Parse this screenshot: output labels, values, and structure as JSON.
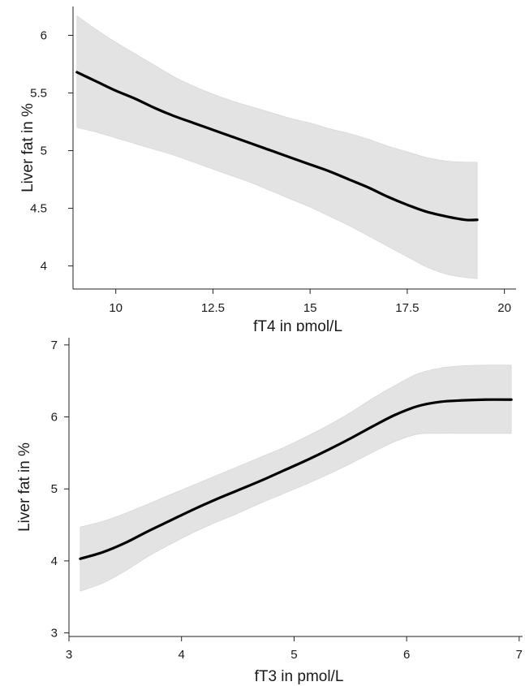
{
  "chart_data": [
    {
      "type": "line",
      "title": "",
      "xlabel": "fT4 in pmol/L",
      "ylabel": "Liver fat in %",
      "xlim": [
        8.9,
        20.3
      ],
      "ylim": [
        3.8,
        6.25
      ],
      "xticks": [
        10,
        12.5,
        15,
        17.5,
        20
      ],
      "xtick_labels": [
        "10",
        "12.5",
        "15",
        "17.5",
        "20"
      ],
      "yticks": [
        4,
        4.5,
        5,
        5.5,
        6
      ],
      "ytick_labels": [
        "4",
        "4.5",
        "5",
        "5.5",
        "6"
      ],
      "grid": false,
      "series": [
        {
          "x": [
            9.0,
            9.5,
            10.0,
            10.5,
            11.0,
            11.5,
            12.0,
            12.5,
            13.0,
            13.5,
            14.0,
            14.5,
            15.0,
            15.5,
            16.0,
            16.5,
            17.0,
            17.5,
            18.0,
            18.5,
            19.0,
            19.3
          ],
          "y": [
            5.68,
            5.6,
            5.52,
            5.45,
            5.37,
            5.3,
            5.24,
            5.18,
            5.12,
            5.06,
            5.0,
            4.94,
            4.88,
            4.82,
            4.75,
            4.68,
            4.6,
            4.53,
            4.47,
            4.43,
            4.4,
            4.4
          ],
          "lower": [
            5.2,
            5.16,
            5.11,
            5.06,
            5.01,
            4.96,
            4.9,
            4.84,
            4.78,
            4.72,
            4.65,
            4.58,
            4.51,
            4.43,
            4.35,
            4.26,
            4.17,
            4.08,
            3.99,
            3.93,
            3.9,
            3.89
          ],
          "upper": [
            6.17,
            6.05,
            5.94,
            5.84,
            5.74,
            5.64,
            5.56,
            5.49,
            5.43,
            5.38,
            5.33,
            5.28,
            5.24,
            5.19,
            5.15,
            5.1,
            5.04,
            4.99,
            4.94,
            4.91,
            4.9,
            4.9
          ]
        }
      ]
    },
    {
      "type": "line",
      "title": "",
      "xlabel": "fT3 in pmol/L",
      "ylabel": "Liver fat in %",
      "xlim": [
        3.0,
        7.03
      ],
      "ylim": [
        2.95,
        7.1
      ],
      "xticks": [
        3,
        4,
        5,
        6,
        7
      ],
      "xtick_labels": [
        "3",
        "4",
        "5",
        "6",
        "7"
      ],
      "yticks": [
        3,
        4,
        5,
        6,
        7
      ],
      "ytick_labels": [
        "3",
        "4",
        "5",
        "6",
        "7"
      ],
      "grid": false,
      "series": [
        {
          "x": [
            3.1,
            3.3,
            3.5,
            3.7,
            3.9,
            4.1,
            4.3,
            4.5,
            4.7,
            4.9,
            5.1,
            5.3,
            5.5,
            5.7,
            5.9,
            6.1,
            6.3,
            6.5,
            6.7,
            6.93
          ],
          "y": [
            4.03,
            4.12,
            4.25,
            4.41,
            4.56,
            4.71,
            4.85,
            4.98,
            5.11,
            5.25,
            5.39,
            5.54,
            5.7,
            5.87,
            6.03,
            6.15,
            6.21,
            6.23,
            6.24,
            6.24
          ],
          "lower": [
            3.58,
            3.69,
            3.86,
            4.06,
            4.23,
            4.39,
            4.53,
            4.66,
            4.8,
            4.93,
            5.06,
            5.2,
            5.35,
            5.51,
            5.66,
            5.76,
            5.77,
            5.77,
            5.77,
            5.77
          ],
          "upper": [
            4.47,
            4.55,
            4.66,
            4.79,
            4.92,
            5.05,
            5.18,
            5.31,
            5.44,
            5.57,
            5.72,
            5.88,
            6.06,
            6.26,
            6.44,
            6.6,
            6.68,
            6.71,
            6.72,
            6.72
          ]
        }
      ]
    }
  ]
}
